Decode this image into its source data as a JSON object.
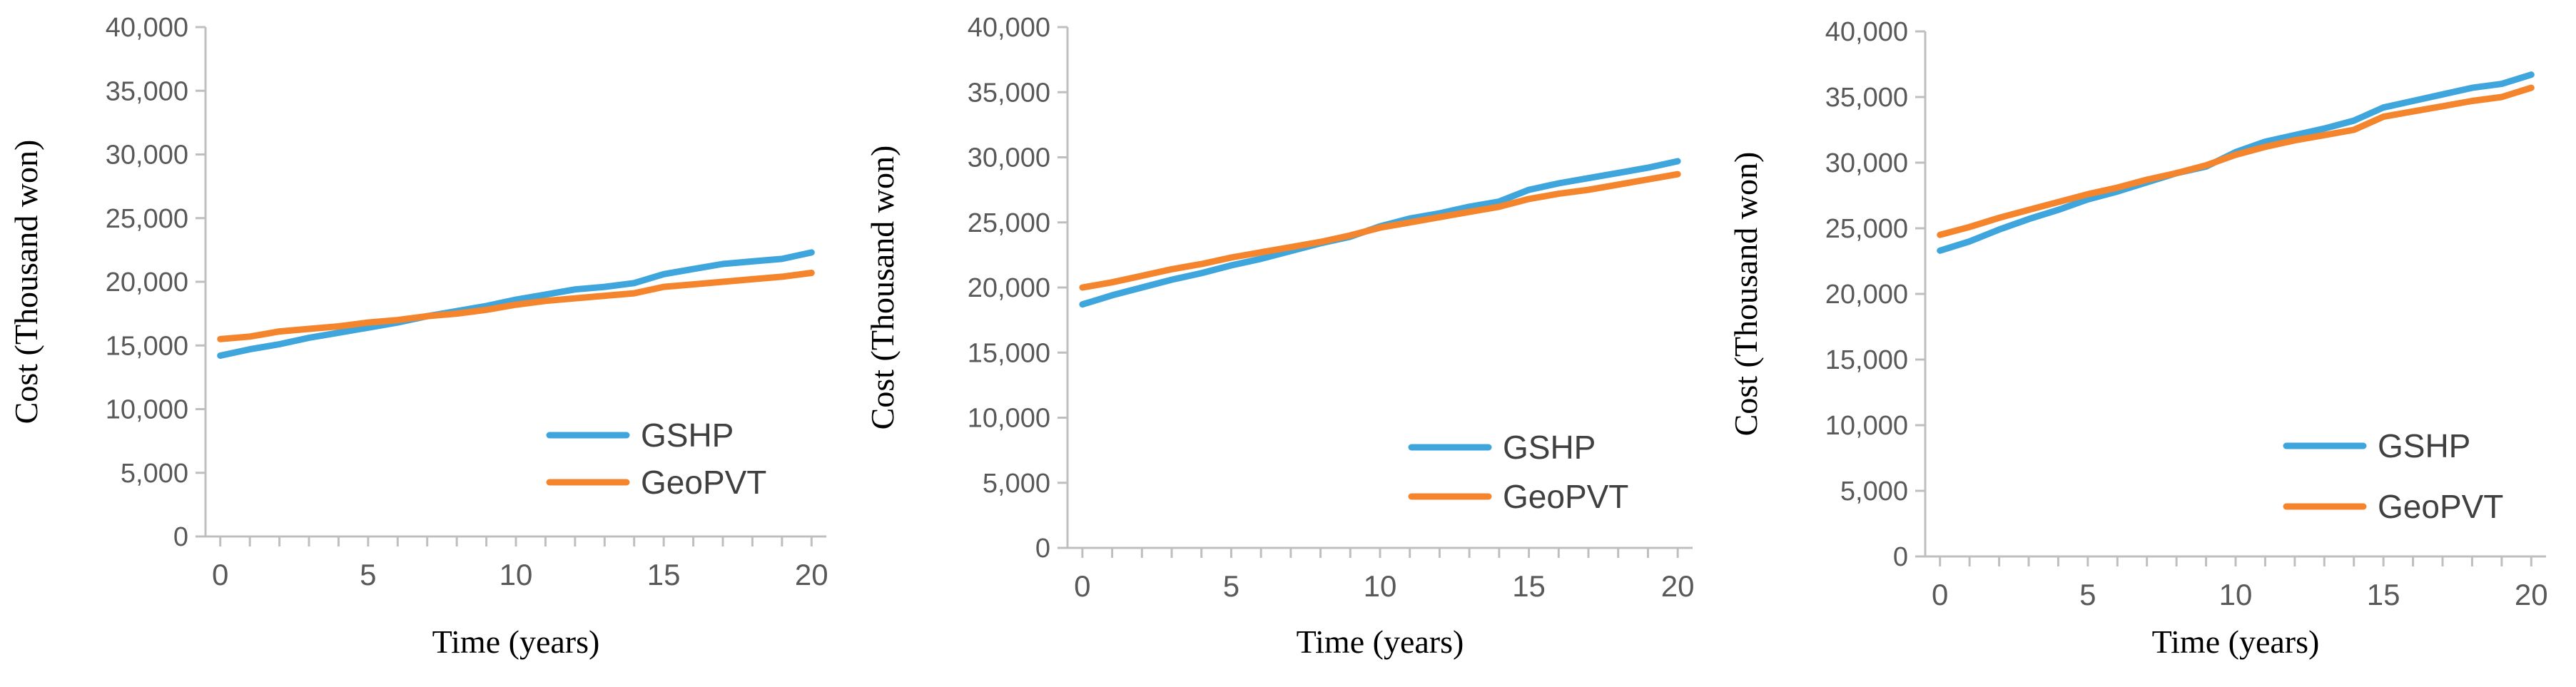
{
  "colors": {
    "gshp": "#3ea6dc",
    "geopvt": "#f5852d"
  },
  "chart_data": [
    {
      "type": "line",
      "title": "",
      "xlabel": "Time (years)",
      "ylabel": "Cost (Thousand won)",
      "ylim": [
        0,
        40000
      ],
      "xlim": [
        -0.5,
        20.5
      ],
      "yticks": [
        "0",
        "5,000",
        "10,000",
        "15,000",
        "20,000",
        "25,000",
        "30,000",
        "35,000",
        "40,000"
      ],
      "xticks": [
        "0",
        "5",
        "10",
        "15",
        "20"
      ],
      "legend_position": "bottom-right",
      "grid": false,
      "x": [
        0,
        1,
        2,
        3,
        4,
        5,
        6,
        7,
        8,
        9,
        10,
        11,
        12,
        13,
        14,
        15,
        16,
        17,
        18,
        19,
        20
      ],
      "series": [
        {
          "name": "GSHP",
          "color_key": "gshp",
          "values": [
            14200,
            14700,
            15100,
            15600,
            16000,
            16400,
            16800,
            17300,
            17700,
            18100,
            18600,
            19000,
            19400,
            19600,
            19900,
            20600,
            21000,
            21400,
            21600,
            21800,
            22300
          ]
        },
        {
          "name": "GeoPVT",
          "color_key": "geopvt",
          "values": [
            15500,
            15700,
            16100,
            16300,
            16500,
            16800,
            17000,
            17300,
            17500,
            17800,
            18200,
            18500,
            18700,
            18900,
            19100,
            19600,
            19800,
            20000,
            20200,
            20400,
            20700
          ]
        }
      ]
    },
    {
      "type": "line",
      "title": "",
      "xlabel": "Time (years)",
      "ylabel": "Cost (Thousand won)",
      "ylim": [
        0,
        40000
      ],
      "xlim": [
        -0.5,
        20.5
      ],
      "yticks": [
        "0",
        "5,000",
        "10,000",
        "15,000",
        "20,000",
        "25,000",
        "30,000",
        "35,000",
        "40,000"
      ],
      "xticks": [
        "0",
        "5",
        "10",
        "15",
        "20"
      ],
      "legend_position": "bottom-right",
      "grid": false,
      "x": [
        0,
        1,
        2,
        3,
        4,
        5,
        6,
        7,
        8,
        9,
        10,
        11,
        12,
        13,
        14,
        15,
        16,
        17,
        18,
        19,
        20
      ],
      "series": [
        {
          "name": "GSHP",
          "color_key": "gshp",
          "values": [
            18700,
            19400,
            20000,
            20600,
            21100,
            21700,
            22200,
            22800,
            23400,
            23900,
            24700,
            25300,
            25700,
            26200,
            26600,
            27500,
            28000,
            28400,
            28800,
            29200,
            29700
          ]
        },
        {
          "name": "GeoPVT",
          "color_key": "geopvt",
          "values": [
            20000,
            20400,
            20900,
            21400,
            21800,
            22300,
            22700,
            23100,
            23500,
            24000,
            24600,
            25000,
            25400,
            25800,
            26200,
            26800,
            27200,
            27500,
            27900,
            28300,
            28700
          ]
        }
      ]
    },
    {
      "type": "line",
      "title": "",
      "xlabel": "Time (years)",
      "ylabel": "Cost (Thousand won)",
      "ylim": [
        0,
        40000
      ],
      "xlim": [
        -0.5,
        20.5
      ],
      "yticks": [
        "0",
        "5,000",
        "10,000",
        "15,000",
        "20,000",
        "25,000",
        "30,000",
        "35,000",
        "40,000"
      ],
      "xticks": [
        "0",
        "5",
        "10",
        "15",
        "20"
      ],
      "legend_position": "bottom-right",
      "grid": false,
      "x": [
        0,
        1,
        2,
        3,
        4,
        5,
        6,
        7,
        8,
        9,
        10,
        11,
        12,
        13,
        14,
        15,
        16,
        17,
        18,
        19,
        20
      ],
      "series": [
        {
          "name": "GSHP",
          "color_key": "gshp",
          "values": [
            23300,
            24000,
            24900,
            25700,
            26400,
            27200,
            27800,
            28500,
            29200,
            29700,
            30800,
            31600,
            32100,
            32600,
            33200,
            34200,
            34700,
            35200,
            35700,
            36000,
            36700
          ]
        },
        {
          "name": "GeoPVT",
          "color_key": "geopvt",
          "values": [
            24500,
            25100,
            25800,
            26400,
            27000,
            27600,
            28100,
            28700,
            29200,
            29800,
            30600,
            31200,
            31700,
            32100,
            32500,
            33500,
            33900,
            34300,
            34700,
            35000,
            35700
          ]
        }
      ]
    }
  ]
}
